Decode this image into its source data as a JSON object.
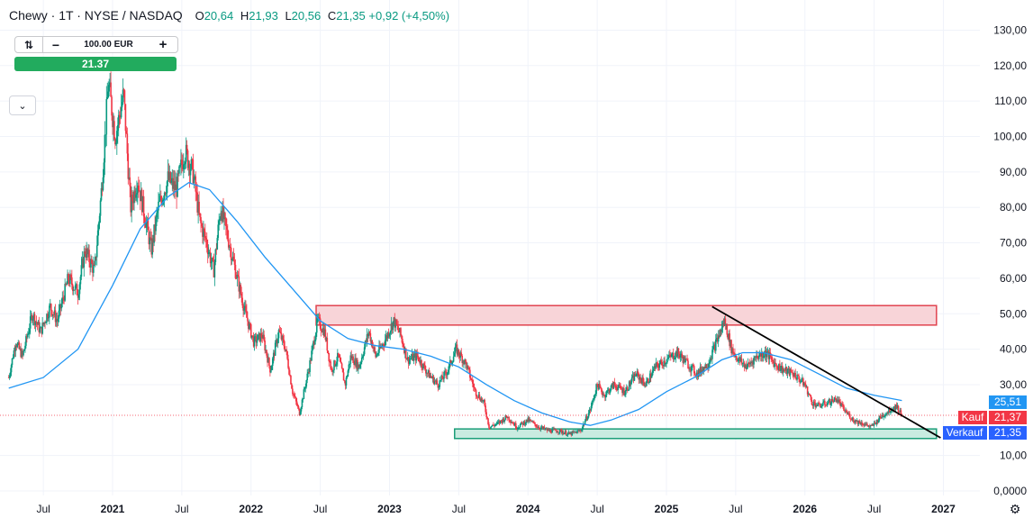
{
  "header": {
    "symbol": "Chewy · 1T · NYSE / NASDAQ",
    "open_label": "O",
    "open": "20,64",
    "high_label": "H",
    "high": "21,93",
    "low_label": "L",
    "low": "20,56",
    "close_label": "C",
    "close": "21,35",
    "change": "+0,92 (+4,50%)"
  },
  "order_panel": {
    "amount": "100.00 EUR",
    "minus": "−",
    "plus": "+",
    "price": "21.37"
  },
  "colors": {
    "up": "#089981",
    "down": "#f23645",
    "ma": "#2196f3"
  },
  "badges": {
    "ma_value": "25,51",
    "buy_label": "Kauf",
    "buy_value": "21,37",
    "sell_label": "Verkauf",
    "sell_value": "21,35"
  },
  "chart_data": {
    "type": "line",
    "title": "",
    "xlabel": "",
    "ylabel": "",
    "ylim": [
      0,
      130
    ],
    "y_ticks": [
      {
        "value": 130,
        "label": "130,00"
      },
      {
        "value": 120,
        "label": "120,00"
      },
      {
        "value": 110,
        "label": "110,00"
      },
      {
        "value": 100,
        "label": "100,00"
      },
      {
        "value": 90,
        "label": "90,00"
      },
      {
        "value": 80,
        "label": "80,00"
      },
      {
        "value": 70,
        "label": "70,00"
      },
      {
        "value": 60,
        "label": "60,00"
      },
      {
        "value": 50,
        "label": "50,00"
      },
      {
        "value": 40,
        "label": "40,00"
      },
      {
        "value": 30,
        "label": "30,00"
      },
      {
        "value": 10,
        "label": "10,00"
      },
      {
        "value": 0,
        "label": "0,0000"
      }
    ],
    "x_ticks": [
      {
        "t": 2020.5,
        "label": "Jul"
      },
      {
        "t": 2021.0,
        "label": "2021"
      },
      {
        "t": 2021.5,
        "label": "Jul"
      },
      {
        "t": 2022.0,
        "label": "2022"
      },
      {
        "t": 2022.5,
        "label": "Jul"
      },
      {
        "t": 2023.0,
        "label": "2023"
      },
      {
        "t": 2023.5,
        "label": "Jul"
      },
      {
        "t": 2024.0,
        "label": "2024"
      },
      {
        "t": 2024.5,
        "label": "Jul"
      },
      {
        "t": 2025.0,
        "label": "2025"
      },
      {
        "t": 2025.5,
        "label": "Jul"
      },
      {
        "t": 2026.0,
        "label": "2026"
      },
      {
        "t": 2026.5,
        "label": "Jul"
      },
      {
        "t": 2027.0,
        "label": "2027"
      }
    ],
    "price": [
      [
        2020.25,
        32
      ],
      [
        2020.3,
        42
      ],
      [
        2020.35,
        38
      ],
      [
        2020.42,
        50
      ],
      [
        2020.48,
        45
      ],
      [
        2020.55,
        52
      ],
      [
        2020.6,
        48
      ],
      [
        2020.68,
        60
      ],
      [
        2020.75,
        56
      ],
      [
        2020.8,
        68
      ],
      [
        2020.87,
        62
      ],
      [
        2020.92,
        85
      ],
      [
        2020.97,
        115
      ],
      [
        2021.02,
        100
      ],
      [
        2021.08,
        112
      ],
      [
        2021.13,
        80
      ],
      [
        2021.18,
        88
      ],
      [
        2021.23,
        78
      ],
      [
        2021.28,
        68
      ],
      [
        2021.33,
        80
      ],
      [
        2021.4,
        88
      ],
      [
        2021.46,
        85
      ],
      [
        2021.52,
        96
      ],
      [
        2021.58,
        90
      ],
      [
        2021.63,
        76
      ],
      [
        2021.68,
        70
      ],
      [
        2021.73,
        62
      ],
      [
        2021.78,
        80
      ],
      [
        2021.83,
        72
      ],
      [
        2021.9,
        60
      ],
      [
        2021.96,
        50
      ],
      [
        2022.02,
        42
      ],
      [
        2022.08,
        44
      ],
      [
        2022.14,
        34
      ],
      [
        2022.2,
        45
      ],
      [
        2022.25,
        40
      ],
      [
        2022.3,
        28
      ],
      [
        2022.35,
        22
      ],
      [
        2022.42,
        35
      ],
      [
        2022.48,
        48
      ],
      [
        2022.53,
        45
      ],
      [
        2022.58,
        34
      ],
      [
        2022.63,
        38
      ],
      [
        2022.68,
        30
      ],
      [
        2022.72,
        38
      ],
      [
        2022.78,
        35
      ],
      [
        2022.85,
        45
      ],
      [
        2022.9,
        38
      ],
      [
        2022.96,
        42
      ],
      [
        2023.03,
        48
      ],
      [
        2023.08,
        44
      ],
      [
        2023.13,
        37
      ],
      [
        2023.2,
        38
      ],
      [
        2023.28,
        33
      ],
      [
        2023.35,
        30
      ],
      [
        2023.42,
        34
      ],
      [
        2023.48,
        40
      ],
      [
        2023.55,
        36
      ],
      [
        2023.62,
        28
      ],
      [
        2023.68,
        25
      ],
      [
        2023.72,
        18
      ],
      [
        2023.78,
        19
      ],
      [
        2023.85,
        21
      ],
      [
        2023.92,
        18
      ],
      [
        2024.0,
        20
      ],
      [
        2024.08,
        18
      ],
      [
        2024.15,
        17
      ],
      [
        2024.22,
        17
      ],
      [
        2024.3,
        16
      ],
      [
        2024.38,
        17
      ],
      [
        2024.45,
        23
      ],
      [
        2024.5,
        30
      ],
      [
        2024.55,
        27
      ],
      [
        2024.62,
        30
      ],
      [
        2024.7,
        28
      ],
      [
        2024.78,
        33
      ],
      [
        2024.85,
        30
      ],
      [
        2024.92,
        35
      ],
      [
        2025.0,
        37
      ],
      [
        2025.08,
        39
      ],
      [
        2025.15,
        36
      ],
      [
        2025.22,
        33
      ],
      [
        2025.3,
        36
      ],
      [
        2025.36,
        42
      ],
      [
        2025.42,
        48
      ],
      [
        2025.47,
        40
      ],
      [
        2025.52,
        37
      ],
      [
        2025.58,
        35
      ],
      [
        2025.65,
        38
      ],
      [
        2025.72,
        39
      ],
      [
        2025.78,
        36
      ],
      [
        2025.85,
        34
      ],
      [
        2025.92,
        33
      ],
      [
        2026.0,
        30
      ],
      [
        2026.05,
        25
      ],
      [
        2026.1,
        24
      ],
      [
        2026.17,
        25
      ],
      [
        2026.23,
        26
      ],
      [
        2026.28,
        23
      ],
      [
        2026.35,
        20
      ],
      [
        2026.42,
        19
      ],
      [
        2026.48,
        18
      ],
      [
        2026.55,
        21
      ],
      [
        2026.62,
        23
      ],
      [
        2026.66,
        24
      ],
      [
        2026.7,
        21.35
      ]
    ],
    "moving_average": [
      [
        2020.25,
        29
      ],
      [
        2020.5,
        32
      ],
      [
        2020.75,
        40
      ],
      [
        2021.0,
        58
      ],
      [
        2021.2,
        74
      ],
      [
        2021.4,
        83
      ],
      [
        2021.55,
        87
      ],
      [
        2021.7,
        85
      ],
      [
        2021.9,
        76
      ],
      [
        2022.1,
        66
      ],
      [
        2022.3,
        57
      ],
      [
        2022.5,
        48
      ],
      [
        2022.7,
        43
      ],
      [
        2022.9,
        41
      ],
      [
        2023.1,
        40
      ],
      [
        2023.3,
        38
      ],
      [
        2023.5,
        35
      ],
      [
        2023.7,
        30
      ],
      [
        2023.9,
        25.5
      ],
      [
        2024.1,
        22
      ],
      [
        2024.3,
        19.5
      ],
      [
        2024.45,
        18.5
      ],
      [
        2024.6,
        20
      ],
      [
        2024.8,
        23
      ],
      [
        2025.0,
        28
      ],
      [
        2025.2,
        32
      ],
      [
        2025.4,
        37
      ],
      [
        2025.55,
        39
      ],
      [
        2025.7,
        39
      ],
      [
        2025.9,
        37
      ],
      [
        2026.1,
        33
      ],
      [
        2026.3,
        29
      ],
      [
        2026.5,
        27
      ],
      [
        2026.7,
        25.51
      ]
    ],
    "zones": [
      {
        "name": "resistance",
        "t0": 2022.47,
        "t1": 2026.95,
        "y0": 46.8,
        "y1": 52.3,
        "fill": "#f8d4d8",
        "stroke": "#e0434f"
      },
      {
        "name": "support",
        "t0": 2023.47,
        "t1": 2026.95,
        "y0": 14.8,
        "y1": 17.5,
        "fill": "#c9ebe0",
        "stroke": "#1b9e79"
      }
    ],
    "trendline": {
      "t0": 2025.33,
      "y0": 52,
      "t1": 2026.98,
      "y1": 15
    }
  }
}
